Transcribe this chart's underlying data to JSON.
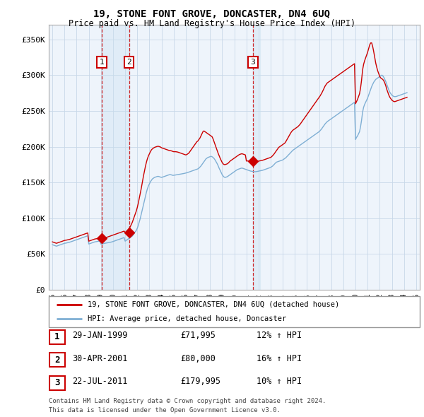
{
  "title": "19, STONE FONT GROVE, DONCASTER, DN4 6UQ",
  "subtitle": "Price paid vs. HM Land Registry's House Price Index (HPI)",
  "ylim": [
    0,
    370000
  ],
  "yticks": [
    0,
    50000,
    100000,
    150000,
    200000,
    250000,
    300000,
    350000
  ],
  "ytick_labels": [
    "£0",
    "£50K",
    "£100K",
    "£150K",
    "£200K",
    "£250K",
    "£300K",
    "£350K"
  ],
  "red_line_color": "#cc0000",
  "blue_line_color": "#7fafd4",
  "vline_color": "#cc0000",
  "shade_color": "#ddeeff",
  "grid_color": "#cccccc",
  "background_color": "#ffffff",
  "chart_bg_color": "#eef4fb",
  "legend_label_red": "19, STONE FONT GROVE, DONCASTER, DN4 6UQ (detached house)",
  "legend_label_blue": "HPI: Average price, detached house, Doncaster",
  "transactions": [
    {
      "num": 1,
      "date": "29-JAN-1999",
      "price": 71995,
      "pct": "12%",
      "direction": "↑",
      "x": 1999.08
    },
    {
      "num": 2,
      "date": "30-APR-2001",
      "price": 80000,
      "pct": "16%",
      "direction": "↑",
      "x": 2001.33
    },
    {
      "num": 3,
      "date": "22-JUL-2011",
      "price": 179995,
      "pct": "10%",
      "direction": "↑",
      "x": 2011.55
    }
  ],
  "footnote1": "Contains HM Land Registry data © Crown copyright and database right 2024.",
  "footnote2": "This data is licensed under the Open Government Licence v3.0.",
  "hpi_data": {
    "years": [
      1995.0,
      1995.083,
      1995.167,
      1995.25,
      1995.333,
      1995.417,
      1995.5,
      1995.583,
      1995.667,
      1995.75,
      1995.833,
      1995.917,
      1996.0,
      1996.083,
      1996.167,
      1996.25,
      1996.333,
      1996.417,
      1996.5,
      1996.583,
      1996.667,
      1996.75,
      1996.833,
      1996.917,
      1997.0,
      1997.083,
      1997.167,
      1997.25,
      1997.333,
      1997.417,
      1997.5,
      1997.583,
      1997.667,
      1997.75,
      1997.833,
      1997.917,
      1998.0,
      1998.083,
      1998.167,
      1998.25,
      1998.333,
      1998.417,
      1998.5,
      1998.583,
      1998.667,
      1998.75,
      1998.833,
      1998.917,
      1999.0,
      1999.083,
      1999.167,
      1999.25,
      1999.333,
      1999.417,
      1999.5,
      1999.583,
      1999.667,
      1999.75,
      1999.833,
      1999.917,
      2000.0,
      2000.083,
      2000.167,
      2000.25,
      2000.333,
      2000.417,
      2000.5,
      2000.583,
      2000.667,
      2000.75,
      2000.833,
      2000.917,
      2001.0,
      2001.083,
      2001.167,
      2001.25,
      2001.333,
      2001.417,
      2001.5,
      2001.583,
      2001.667,
      2001.75,
      2001.833,
      2001.917,
      2002.0,
      2002.083,
      2002.167,
      2002.25,
      2002.333,
      2002.417,
      2002.5,
      2002.583,
      2002.667,
      2002.75,
      2002.833,
      2002.917,
      2003.0,
      2003.083,
      2003.167,
      2003.25,
      2003.333,
      2003.417,
      2003.5,
      2003.583,
      2003.667,
      2003.75,
      2003.833,
      2003.917,
      2004.0,
      2004.083,
      2004.167,
      2004.25,
      2004.333,
      2004.417,
      2004.5,
      2004.583,
      2004.667,
      2004.75,
      2004.833,
      2004.917,
      2005.0,
      2005.083,
      2005.167,
      2005.25,
      2005.333,
      2005.417,
      2005.5,
      2005.583,
      2005.667,
      2005.75,
      2005.833,
      2005.917,
      2006.0,
      2006.083,
      2006.167,
      2006.25,
      2006.333,
      2006.417,
      2006.5,
      2006.583,
      2006.667,
      2006.75,
      2006.833,
      2006.917,
      2007.0,
      2007.083,
      2007.167,
      2007.25,
      2007.333,
      2007.417,
      2007.5,
      2007.583,
      2007.667,
      2007.75,
      2007.833,
      2007.917,
      2008.0,
      2008.083,
      2008.167,
      2008.25,
      2008.333,
      2008.417,
      2008.5,
      2008.583,
      2008.667,
      2008.75,
      2008.833,
      2008.917,
      2009.0,
      2009.083,
      2009.167,
      2009.25,
      2009.333,
      2009.417,
      2009.5,
      2009.583,
      2009.667,
      2009.75,
      2009.833,
      2009.917,
      2010.0,
      2010.083,
      2010.167,
      2010.25,
      2010.333,
      2010.417,
      2010.5,
      2010.583,
      2010.667,
      2010.75,
      2010.833,
      2010.917,
      2011.0,
      2011.083,
      2011.167,
      2011.25,
      2011.333,
      2011.417,
      2011.5,
      2011.583,
      2011.667,
      2011.75,
      2011.833,
      2011.917,
      2012.0,
      2012.083,
      2012.167,
      2012.25,
      2012.333,
      2012.417,
      2012.5,
      2012.583,
      2012.667,
      2012.75,
      2012.833,
      2012.917,
      2013.0,
      2013.083,
      2013.167,
      2013.25,
      2013.333,
      2013.417,
      2013.5,
      2013.583,
      2013.667,
      2013.75,
      2013.833,
      2013.917,
      2014.0,
      2014.083,
      2014.167,
      2014.25,
      2014.333,
      2014.417,
      2014.5,
      2014.583,
      2014.667,
      2014.75,
      2014.833,
      2014.917,
      2015.0,
      2015.083,
      2015.167,
      2015.25,
      2015.333,
      2015.417,
      2015.5,
      2015.583,
      2015.667,
      2015.75,
      2015.833,
      2015.917,
      2016.0,
      2016.083,
      2016.167,
      2016.25,
      2016.333,
      2016.417,
      2016.5,
      2016.583,
      2016.667,
      2016.75,
      2016.833,
      2016.917,
      2017.0,
      2017.083,
      2017.167,
      2017.25,
      2017.333,
      2017.417,
      2017.5,
      2017.583,
      2017.667,
      2017.75,
      2017.833,
      2017.917,
      2018.0,
      2018.083,
      2018.167,
      2018.25,
      2018.333,
      2018.417,
      2018.5,
      2018.583,
      2018.667,
      2018.75,
      2018.833,
      2018.917,
      2019.0,
      2019.083,
      2019.167,
      2019.25,
      2019.333,
      2019.417,
      2019.5,
      2019.583,
      2019.667,
      2019.75,
      2019.833,
      2019.917,
      2020.0,
      2020.083,
      2020.167,
      2020.25,
      2020.333,
      2020.417,
      2020.5,
      2020.583,
      2020.667,
      2020.75,
      2020.833,
      2020.917,
      2021.0,
      2021.083,
      2021.167,
      2021.25,
      2021.333,
      2021.417,
      2021.5,
      2021.583,
      2021.667,
      2021.75,
      2021.833,
      2021.917,
      2022.0,
      2022.083,
      2022.167,
      2022.25,
      2022.333,
      2022.417,
      2022.5,
      2022.583,
      2022.667,
      2022.75,
      2022.833,
      2022.917,
      2023.0,
      2023.083,
      2023.167,
      2023.25,
      2023.333,
      2023.417,
      2023.5,
      2023.583,
      2023.667,
      2023.75,
      2023.833,
      2023.917,
      2024.0,
      2024.083,
      2024.167,
      2024.25
    ],
    "hpi_values": [
      63000,
      62500,
      62000,
      61500,
      61000,
      61500,
      62000,
      62500,
      63000,
      63500,
      64000,
      64500,
      65000,
      65200,
      65500,
      65800,
      66000,
      66500,
      67000,
      67500,
      68000,
      68500,
      69000,
      69500,
      70000,
      70500,
      71000,
      71500,
      72000,
      72500,
      73000,
      73500,
      74000,
      74500,
      75000,
      75500,
      64000,
      64500,
      65000,
      65500,
      66000,
      66500,
      67000,
      67200,
      67500,
      67800,
      68000,
      68200,
      64000,
      64200,
      64500,
      64800,
      65000,
      65300,
      65600,
      65800,
      66000,
      66300,
      66600,
      67000,
      67500,
      68000,
      68500,
      69000,
      69500,
      70000,
      70500,
      71000,
      71500,
      72000,
      72500,
      73000,
      68000,
      69000,
      70000,
      71000,
      72000,
      73000,
      74000,
      75000,
      77000,
      79000,
      81000,
      83000,
      86000,
      90000,
      95000,
      100000,
      106000,
      112000,
      118000,
      124000,
      130000,
      136000,
      141000,
      145000,
      148000,
      151000,
      153000,
      155000,
      156000,
      157000,
      157500,
      158000,
      158500,
      158500,
      158000,
      157500,
      157000,
      157500,
      158000,
      158500,
      159000,
      159500,
      160000,
      160500,
      161000,
      161000,
      160500,
      160000,
      160000,
      160200,
      160500,
      160800,
      161000,
      161200,
      161500,
      161800,
      162000,
      162200,
      162500,
      162800,
      163000,
      163500,
      164000,
      164500,
      165000,
      165500,
      166000,
      166500,
      167000,
      167500,
      168000,
      168500,
      169000,
      170000,
      171500,
      173000,
      175000,
      177000,
      179000,
      181000,
      183000,
      184000,
      185000,
      185500,
      186000,
      186500,
      186000,
      185000,
      183500,
      181500,
      179000,
      176500,
      173500,
      170000,
      167000,
      164000,
      161000,
      159000,
      157500,
      157000,
      157500,
      158000,
      159000,
      160000,
      161000,
      162000,
      163000,
      164000,
      165000,
      166000,
      167000,
      168000,
      168500,
      169000,
      169500,
      170000,
      170000,
      169500,
      169000,
      168500,
      168000,
      167500,
      167000,
      166500,
      166000,
      165800,
      165500,
      165200,
      165000,
      165000,
      165200,
      165500,
      165800,
      166000,
      166300,
      166700,
      167000,
      167500,
      168000,
      168500,
      169000,
      169500,
      170000,
      170500,
      171000,
      172000,
      173000,
      174500,
      176000,
      177500,
      178500,
      179000,
      179500,
      180000,
      180500,
      181000,
      181500,
      182500,
      183500,
      184500,
      186000,
      187500,
      189000,
      190500,
      192000,
      193500,
      195000,
      196000,
      197000,
      198000,
      199000,
      200000,
      201000,
      202000,
      203000,
      204000,
      205000,
      206000,
      207000,
      208000,
      209000,
      210000,
      211000,
      212000,
      213000,
      214000,
      215000,
      216000,
      217000,
      218000,
      219000,
      220000,
      221000,
      222500,
      224000,
      226000,
      228000,
      230000,
      232000,
      233500,
      235000,
      236000,
      237000,
      238000,
      239000,
      240000,
      241000,
      242000,
      243000,
      244000,
      245000,
      246000,
      247000,
      248000,
      249000,
      250000,
      251000,
      252000,
      253000,
      254000,
      255000,
      256000,
      257000,
      258000,
      259000,
      260000,
      261000,
      262000,
      210000,
      213000,
      215000,
      218000,
      221000,
      228000,
      237000,
      248000,
      255000,
      259000,
      262000,
      265000,
      268000,
      272000,
      276000,
      280000,
      284000,
      287000,
      290000,
      292000,
      294000,
      295000,
      296000,
      297000,
      298000,
      299000,
      300000,
      299000,
      297000,
      294000,
      291000,
      287000,
      283000,
      279000,
      276000,
      274000,
      272000,
      271000,
      270000,
      270000,
      270000,
      270500,
      271000,
      271500,
      272000,
      272500,
      273000,
      273500,
      274000,
      274500,
      275000,
      275500
    ],
    "red_values": [
      67000,
      66500,
      66000,
      65500,
      65000,
      65500,
      66000,
      66500,
      67000,
      67500,
      68000,
      68500,
      69000,
      69200,
      69500,
      69800,
      70000,
      70500,
      71000,
      71500,
      72000,
      72500,
      73000,
      73500,
      74000,
      74500,
      75000,
      75500,
      76000,
      76500,
      77000,
      77500,
      78000,
      78500,
      79000,
      79500,
      68000,
      68500,
      69000,
      69500,
      70000,
      70500,
      71000,
      71200,
      71500,
      71800,
      72000,
      72200,
      71995,
      71995,
      71995,
      71995,
      72500,
      73000,
      73500,
      74000,
      74500,
      75000,
      75500,
      76000,
      76500,
      77000,
      77500,
      78000,
      78500,
      79000,
      79500,
      80000,
      80500,
      81000,
      81500,
      82000,
      80000,
      80000,
      82000,
      84000,
      86000,
      88000,
      91000,
      94000,
      98000,
      102000,
      106000,
      110000,
      115000,
      121000,
      128000,
      135000,
      142000,
      150000,
      158000,
      165000,
      172000,
      178000,
      183000,
      187000,
      190000,
      193000,
      195500,
      197000,
      198000,
      199000,
      199500,
      200000,
      200500,
      200500,
      200000,
      199500,
      198500,
      198000,
      197500,
      197000,
      196500,
      196000,
      195500,
      195000,
      194500,
      194500,
      194000,
      193500,
      193000,
      193000,
      193000,
      192800,
      192500,
      192000,
      191500,
      191000,
      190500,
      190000,
      189500,
      189000,
      188500,
      189000,
      190000,
      191000,
      193000,
      195000,
      197000,
      199000,
      201000,
      203000,
      205000,
      207000,
      208000,
      210000,
      212000,
      215000,
      218000,
      221000,
      222000,
      221000,
      220000,
      219000,
      218000,
      217000,
      216000,
      215000,
      214000,
      211000,
      207000,
      203000,
      199000,
      195000,
      191000,
      187500,
      184000,
      181000,
      178000,
      176000,
      175000,
      175000,
      175500,
      176000,
      177000,
      178500,
      180000,
      181000,
      182000,
      183000,
      184000,
      185000,
      186000,
      187000,
      188000,
      189000,
      189500,
      190000,
      190000,
      189500,
      189000,
      188500,
      179995,
      179995,
      179995,
      179995,
      180000,
      179800,
      179500,
      179200,
      179000,
      179000,
      179200,
      179500,
      179800,
      180000,
      180300,
      180700,
      181000,
      181500,
      182000,
      182500,
      183000,
      183500,
      184000,
      184500,
      185000,
      186000,
      187500,
      189000,
      191000,
      193000,
      195000,
      197000,
      199000,
      200000,
      201000,
      202000,
      203000,
      204000,
      205000,
      207000,
      209500,
      212000,
      214500,
      217000,
      219500,
      221500,
      223000,
      224000,
      225000,
      226000,
      227000,
      228000,
      229500,
      231000,
      233000,
      235000,
      237000,
      239000,
      241000,
      243000,
      245000,
      247000,
      249000,
      251000,
      253000,
      255000,
      257000,
      259000,
      261000,
      263000,
      265000,
      267000,
      269000,
      271000,
      273500,
      276000,
      279000,
      282000,
      285000,
      287000,
      289000,
      290000,
      291000,
      292000,
      293000,
      294000,
      295000,
      296000,
      297000,
      298000,
      299000,
      300000,
      301000,
      302000,
      303000,
      304000,
      305000,
      306000,
      307000,
      308000,
      309000,
      310000,
      311000,
      312000,
      313000,
      314000,
      315000,
      316000,
      260000,
      263000,
      266000,
      270000,
      274000,
      282000,
      293000,
      307000,
      315000,
      320000,
      324000,
      328000,
      332000,
      337000,
      342000,
      345000,
      345000,
      340000,
      333000,
      325000,
      317000,
      311000,
      306000,
      302000,
      298000,
      296000,
      295000,
      294000,
      292000,
      289000,
      285000,
      280000,
      276000,
      272000,
      269000,
      267000,
      265000,
      264000,
      263000,
      263000,
      263500,
      264000,
      264500,
      265000,
      265500,
      266000,
      266500,
      267000,
      267500,
      268000,
      268500,
      269000
    ]
  }
}
